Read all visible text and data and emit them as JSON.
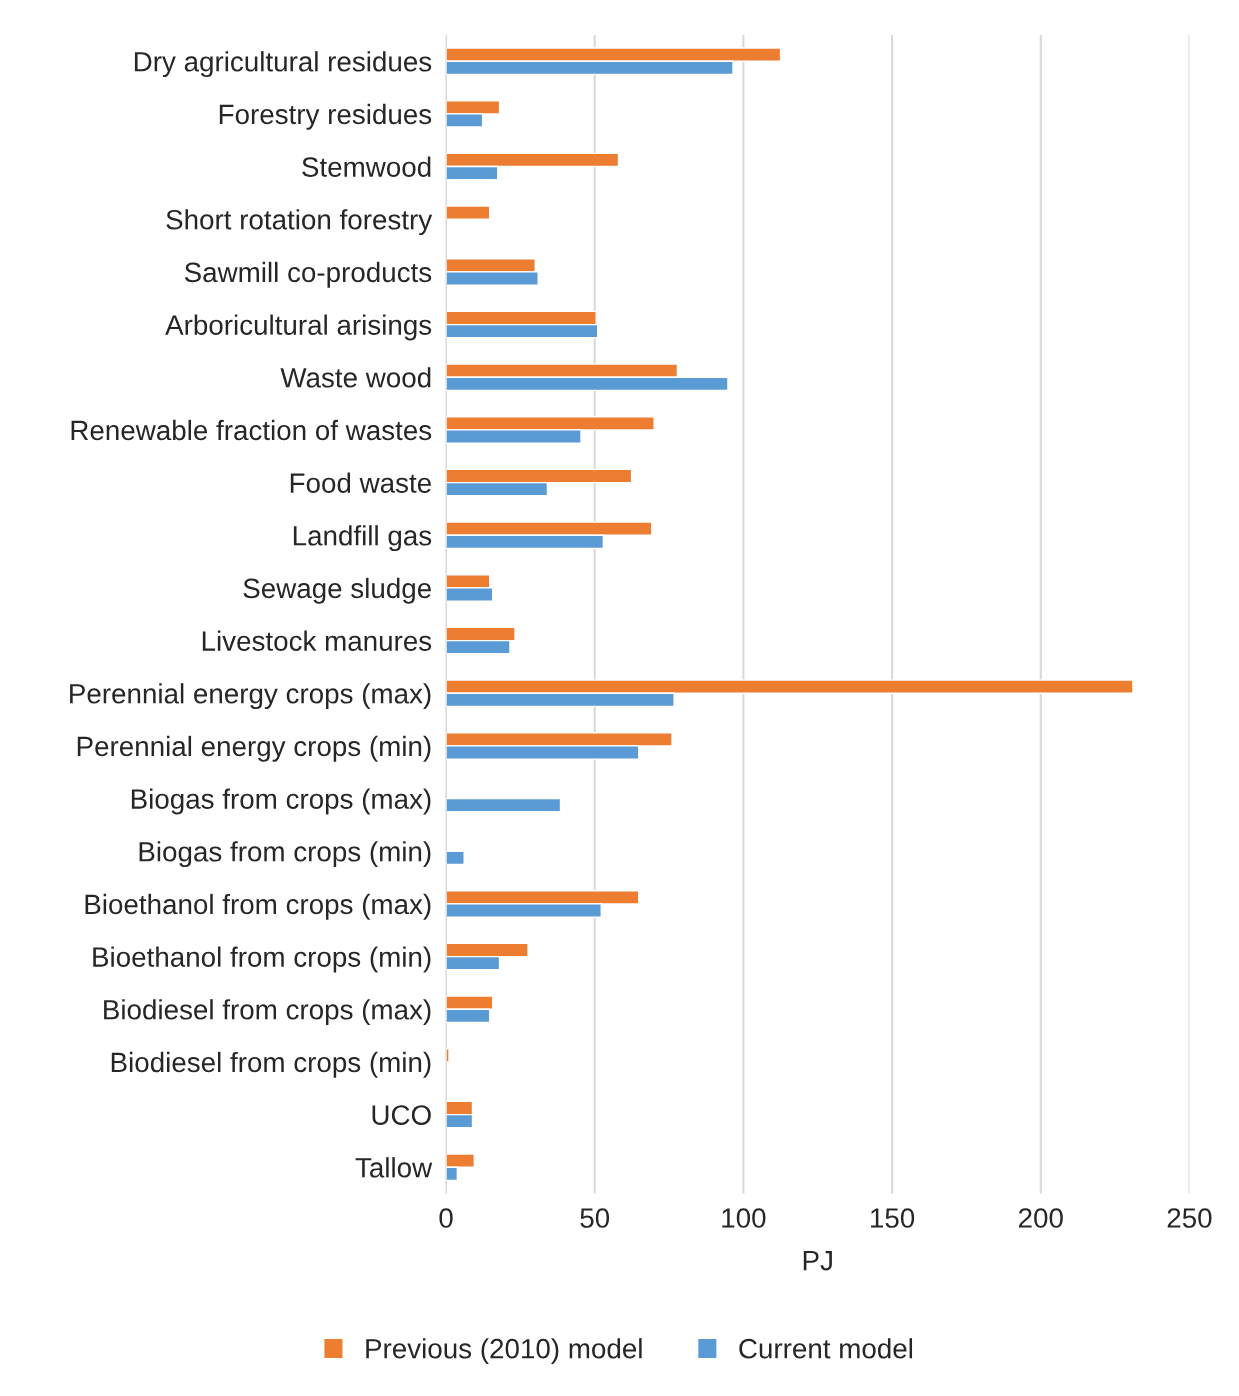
{
  "chart_data": {
    "type": "bar",
    "orientation": "horizontal",
    "xlabel": "PJ",
    "categories": [
      "Dry agricultural residues",
      "Forestry residues",
      "Stemwood",
      "Short rotation forestry",
      "Sawmill co-products",
      "Arboricultural arisings",
      "Waste wood",
      "Renewable fraction of wastes",
      "Food waste",
      "Landfill gas",
      "Sewage sludge",
      "Livestock manures",
      "Perennial energy crops (max)",
      "Perennial energy crops (min)",
      "Biogas from crops (max)",
      "Biogas from crops (min)",
      "Bioethanol from crops (max)",
      "Bioethanol from crops (min)",
      "Biodiesel from crops (max)",
      "Biodiesel from crops (min)",
      "UCO",
      "Tallow"
    ],
    "series": [
      {
        "name": "Previous (2010) model",
        "color": "#ed7d31",
        "values": [
          112.5,
          18,
          58,
          14.7,
          30,
          50.5,
          77.8,
          70,
          62.4,
          69.2,
          14.7,
          23.2,
          231,
          76,
          null,
          null,
          64.8,
          27.6,
          15.7,
          1,
          8.9,
          9.5
        ]
      },
      {
        "name": "Current model",
        "color": "#5b9bd5",
        "values": [
          96.5,
          12.3,
          17.4,
          null,
          31,
          51,
          94.8,
          45.4,
          34.1,
          52.9,
          15.7,
          21.5,
          76.7,
          64.8,
          38.5,
          6.1,
          52.2,
          18,
          14.7,
          null,
          8.9,
          3.8
        ]
      }
    ],
    "xlim": [
      0,
      250
    ],
    "xticks": [
      0,
      50,
      100,
      150,
      200,
      250
    ],
    "grid": "x",
    "legend": "bottom"
  }
}
